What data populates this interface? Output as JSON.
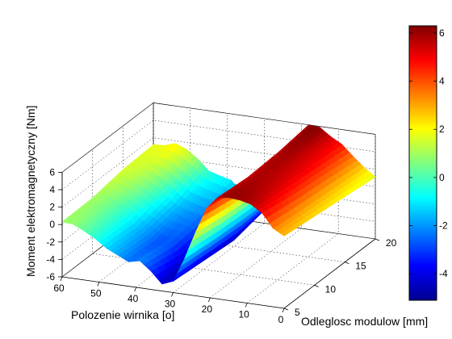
{
  "chart_data": {
    "type": "surface3d",
    "title": "",
    "xlabel": "Polozenie wirnika [o]",
    "ylabel": "Odleglosc modulow [mm]",
    "zlabel": "Moment elektromagnetyczny [Nm]",
    "x_ticks": [
      "60",
      "50",
      "40",
      "30",
      "20",
      "10",
      "0"
    ],
    "y_ticks": [
      "5",
      "10",
      "15",
      "20"
    ],
    "z_ticks": [
      "-6",
      "-4",
      "-2",
      "0",
      "2",
      "4",
      "6"
    ],
    "colorbar_ticks": [
      "6",
      "4",
      "2",
      "0",
      "-2",
      "-4"
    ],
    "xlim": [
      0,
      60
    ],
    "ylim": [
      5,
      20
    ],
    "zlim": [
      -6,
      6
    ],
    "colormap": "jet",
    "grid": true,
    "surface": {
      "rotor_position_deg": [
        0,
        3,
        6,
        9,
        12,
        15,
        18,
        21,
        24,
        27,
        30,
        33,
        36,
        39,
        42,
        45,
        48,
        51,
        54,
        57,
        60
      ],
      "module_distance_mm": [
        5,
        10,
        15,
        20
      ],
      "torque_Nm": [
        [
          2.3,
          3.0,
          4.6,
          5.4,
          5.7,
          5.8,
          5.6,
          4.2,
          1.2,
          -2.0,
          -4.7,
          -5.2,
          -3.9,
          -2.9,
          -3.2,
          -2.6,
          -2.0,
          -1.1,
          -0.4,
          0.2,
          0.3
        ],
        [
          1.9,
          2.6,
          4.0,
          4.9,
          5.3,
          5.5,
          5.3,
          3.6,
          0.6,
          -2.4,
          -5.0,
          -5.8,
          -4.6,
          -3.4,
          -3.6,
          -2.9,
          -2.2,
          -1.3,
          -0.6,
          0.0,
          0.4
        ],
        [
          1.5,
          2.3,
          3.6,
          4.6,
          5.1,
          5.6,
          5.5,
          3.3,
          0.3,
          -2.6,
          -5.3,
          -5.6,
          -4.1,
          -3.0,
          -2.7,
          -2.3,
          -1.4,
          -0.4,
          0.3,
          0.8,
          1.0
        ],
        [
          1.1,
          2.0,
          3.1,
          4.3,
          5.0,
          5.9,
          6.0,
          3.0,
          0.1,
          -2.7,
          -4.5,
          -4.8,
          -2.9,
          -1.6,
          -1.3,
          -0.9,
          0.3,
          1.2,
          1.7,
          1.3,
          1.2
        ]
      ]
    }
  }
}
